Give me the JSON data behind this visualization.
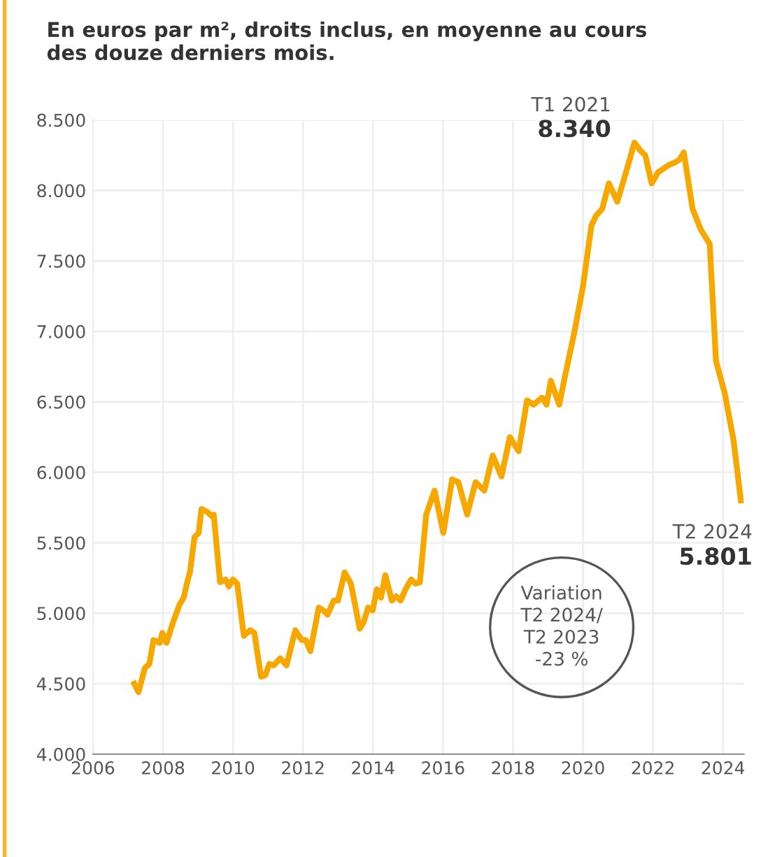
{
  "chart_data": {
    "type": "line",
    "title": "En euros par m², droits inclus, en moyenne au cours\ndes douze derniers mois.",
    "x": [
      2007.18,
      2007.3,
      2007.48,
      2007.61,
      2007.73,
      2007.91,
      2007.98,
      2008.1,
      2008.28,
      2008.47,
      2008.59,
      2008.71,
      2008.77,
      2008.9,
      2009.02,
      2009.1,
      2009.26,
      2009.39,
      2009.45,
      2009.63,
      2009.79,
      2009.88,
      2010.0,
      2010.12,
      2010.31,
      2010.49,
      2010.61,
      2010.8,
      2010.92,
      2011.04,
      2011.16,
      2011.35,
      2011.53,
      2011.78,
      2011.96,
      2012.08,
      2012.21,
      2012.45,
      2012.58,
      2012.7,
      2012.88,
      2013.0,
      2013.19,
      2013.37,
      2013.62,
      2013.74,
      2013.86,
      2013.99,
      2014.11,
      2014.23,
      2014.35,
      2014.54,
      2014.66,
      2014.79,
      2014.91,
      2015.09,
      2015.21,
      2015.34,
      2015.52,
      2015.76,
      2016.01,
      2016.26,
      2016.44,
      2016.69,
      2016.93,
      2017.18,
      2017.42,
      2017.67,
      2017.91,
      2018.16,
      2018.4,
      2018.59,
      2018.83,
      2018.96,
      2019.08,
      2019.32,
      2019.51,
      2019.75,
      2020.0,
      2020.24,
      2020.37,
      2020.55,
      2020.74,
      2020.98,
      2021.23,
      2021.47,
      2021.65,
      2021.78,
      2021.96,
      2022.15,
      2022.27,
      2022.45,
      2022.64,
      2022.76,
      2022.88,
      2023.13,
      2023.37,
      2023.62,
      2023.8,
      2024.05,
      2024.3,
      2024.51
    ],
    "series": [
      {
        "color": "#f7a800",
        "values": [
          4500,
          4440,
          4610,
          4640,
          4810,
          4790,
          4860,
          4790,
          4930,
          5060,
          5110,
          5240,
          5290,
          5540,
          5570,
          5740,
          5720,
          5690,
          5700,
          5220,
          5240,
          5190,
          5240,
          5210,
          4840,
          4880,
          4860,
          4550,
          4560,
          4640,
          4630,
          4680,
          4630,
          4880,
          4810,
          4810,
          4730,
          5040,
          5020,
          4990,
          5090,
          5090,
          5290,
          5210,
          4890,
          4940,
          5040,
          5020,
          5170,
          5110,
          5270,
          5090,
          5120,
          5090,
          5160,
          5240,
          5210,
          5220,
          5700,
          5870,
          5570,
          5950,
          5930,
          5700,
          5930,
          5870,
          6120,
          5970,
          6250,
          6150,
          6510,
          6480,
          6530,
          6480,
          6650,
          6480,
          6710,
          6990,
          7320,
          7750,
          7820,
          7870,
          8050,
          7920,
          8130,
          8340,
          8280,
          8250,
          8050,
          8130,
          8150,
          8180,
          8200,
          8220,
          8270,
          7870,
          7720,
          7620,
          6790,
          6560,
          6230,
          5801
        ]
      }
    ],
    "xlim": [
      2006,
      2024.6
    ],
    "xticks": [
      2006,
      2008,
      2010,
      2012,
      2014,
      2016,
      2018,
      2020,
      2022,
      2024
    ],
    "ylim": [
      4000,
      8500
    ],
    "yticks": [
      {
        "value": 4000,
        "label": "4.000"
      },
      {
        "value": 4500,
        "label": "4.500"
      },
      {
        "value": 5000,
        "label": "5.000"
      },
      {
        "value": 5500,
        "label": "5.500"
      },
      {
        "value": 6000,
        "label": "6.000"
      },
      {
        "value": 6500,
        "label": "6.500"
      },
      {
        "value": 7000,
        "label": "7.000"
      },
      {
        "value": 7500,
        "label": "7.500"
      },
      {
        "value": 8000,
        "label": "8.000"
      },
      {
        "value": 8500,
        "label": "8.500"
      }
    ],
    "grid": true,
    "marker": "none",
    "line_style": "solid",
    "annotations": [
      {
        "text": "T1 2021\n8.340",
        "x": 2021.47,
        "y": 8340
      },
      {
        "text": "T2 2024\n5.801",
        "x": 2024.51,
        "y": 5801
      },
      "Variation\nT2 2024/\nT2 2023\n-23 %"
    ]
  }
}
